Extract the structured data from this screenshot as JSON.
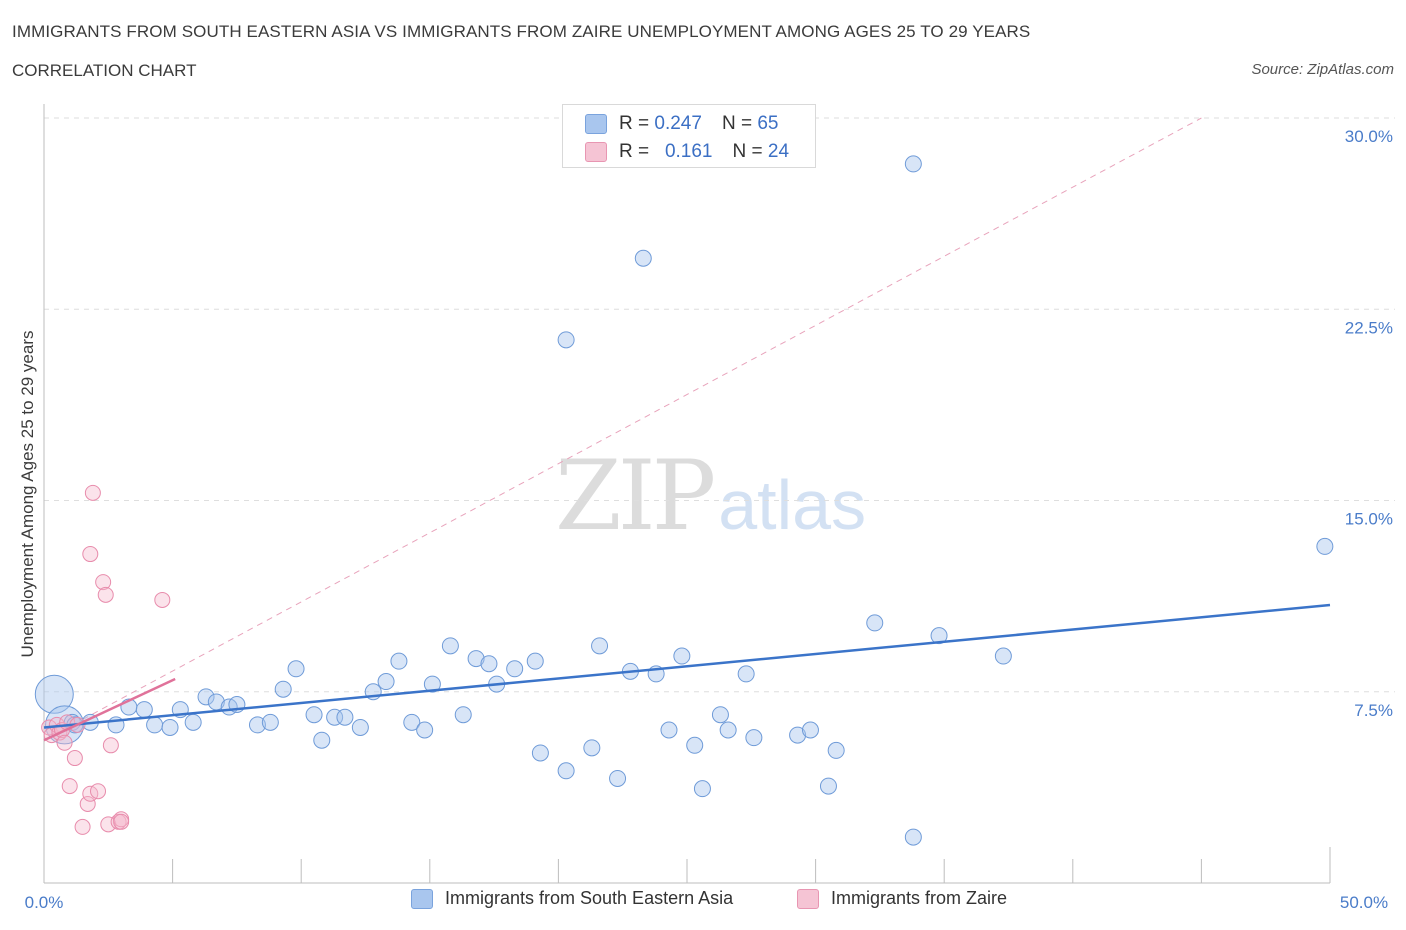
{
  "header": {
    "title": "IMMIGRANTS FROM SOUTH EASTERN ASIA VS IMMIGRANTS FROM ZAIRE UNEMPLOYMENT AMONG AGES 25 TO 29 YEARS",
    "subtitle": "CORRELATION CHART",
    "source": "Source: ZipAtlas.com"
  },
  "watermark": {
    "zip": "ZIP",
    "atlas": "atlas"
  },
  "legend_top": {
    "r_label": "R =",
    "n_label": "N =",
    "series1": {
      "r": "0.247",
      "n": "65"
    },
    "series2": {
      "r": "0.161",
      "n": "24"
    }
  },
  "legend_bottom": {
    "series1": "Immigrants from South Eastern Asia",
    "series2": "Immigrants from Zaire"
  },
  "chart_data": {
    "type": "scatter",
    "title": "IMMIGRANTS FROM SOUTH EASTERN ASIA VS IMMIGRANTS FROM ZAIRE UNEMPLOYMENT AMONG AGES 25 TO 29 YEARS",
    "xlabel": "",
    "ylabel": "Unemployment Among Ages 25 to 29 years",
    "xlim": [
      0,
      50
    ],
    "ylim": [
      0,
      30
    ],
    "x_tick_labels": [
      "0.0%",
      "50.0%"
    ],
    "y_ticks": [
      7.5,
      15.0,
      22.5,
      30.0
    ],
    "y_tick_labels": [
      "7.5%",
      "15.0%",
      "22.5%",
      "30.0%"
    ],
    "grid": true,
    "colors": {
      "series1": "#3b74c9",
      "series1_fill": "#a9c6ee",
      "series2": "#e0729a",
      "series2_fill": "#f5b8cc"
    },
    "series": [
      {
        "name": "Immigrants from South Eastern Asia",
        "R": 0.247,
        "N": 65,
        "trend": {
          "x": [
            0,
            50
          ],
          "y": [
            6.1,
            10.9
          ]
        },
        "points": [
          [
            0.4,
            7.4
          ],
          [
            0.8,
            6.2
          ],
          [
            1.1,
            6.3
          ],
          [
            1.2,
            6.2
          ],
          [
            1.8,
            6.3
          ],
          [
            2.8,
            6.2
          ],
          [
            3.3,
            6.9
          ],
          [
            3.9,
            6.8
          ],
          [
            4.3,
            6.2
          ],
          [
            4.9,
            6.1
          ],
          [
            5.3,
            6.8
          ],
          [
            5.8,
            6.3
          ],
          [
            6.3,
            7.3
          ],
          [
            6.7,
            7.1
          ],
          [
            7.2,
            6.9
          ],
          [
            7.5,
            7.0
          ],
          [
            8.3,
            6.2
          ],
          [
            8.8,
            6.3
          ],
          [
            9.3,
            7.6
          ],
          [
            9.8,
            8.4
          ],
          [
            10.5,
            6.6
          ],
          [
            10.8,
            5.6
          ],
          [
            11.3,
            6.5
          ],
          [
            11.7,
            6.5
          ],
          [
            12.3,
            6.1
          ],
          [
            12.8,
            7.5
          ],
          [
            13.3,
            7.9
          ],
          [
            13.8,
            8.7
          ],
          [
            14.3,
            6.3
          ],
          [
            14.8,
            6.0
          ],
          [
            15.1,
            7.8
          ],
          [
            15.8,
            9.3
          ],
          [
            16.3,
            6.6
          ],
          [
            16.8,
            8.8
          ],
          [
            17.3,
            8.6
          ],
          [
            17.6,
            7.8
          ],
          [
            18.3,
            8.4
          ],
          [
            19.1,
            8.7
          ],
          [
            19.3,
            5.1
          ],
          [
            20.3,
            4.4
          ],
          [
            20.3,
            21.3
          ],
          [
            21.3,
            5.3
          ],
          [
            21.6,
            9.3
          ],
          [
            22.3,
            4.1
          ],
          [
            22.8,
            8.3
          ],
          [
            23.3,
            24.5
          ],
          [
            23.8,
            8.2
          ],
          [
            24.3,
            6.0
          ],
          [
            24.8,
            8.9
          ],
          [
            25.3,
            5.4
          ],
          [
            25.6,
            3.7
          ],
          [
            26.3,
            6.6
          ],
          [
            26.6,
            6.0
          ],
          [
            27.3,
            8.2
          ],
          [
            27.6,
            5.7
          ],
          [
            29.3,
            5.8
          ],
          [
            29.8,
            6.0
          ],
          [
            30.5,
            3.8
          ],
          [
            30.8,
            5.2
          ],
          [
            32.3,
            10.2
          ],
          [
            33.8,
            28.2
          ],
          [
            33.8,
            1.8
          ],
          [
            34.8,
            9.7
          ],
          [
            37.3,
            8.9
          ],
          [
            49.8,
            13.2
          ]
        ],
        "sizes": [
          16,
          12,
          10,
          10,
          10,
          10,
          10,
          10,
          10,
          10,
          10,
          10,
          10,
          10,
          10,
          10,
          10,
          10,
          10,
          10,
          10,
          10,
          10,
          10,
          10,
          10,
          10,
          10,
          10,
          10,
          10,
          10,
          10,
          10,
          10,
          10,
          10,
          10,
          10,
          10,
          10,
          10,
          10,
          10,
          10,
          10,
          10,
          10,
          10,
          10,
          10,
          10,
          10,
          10,
          10,
          10,
          10,
          10,
          10,
          10,
          10,
          10,
          10,
          10,
          10
        ]
      },
      {
        "name": "Immigrants from Zaire",
        "R": 0.161,
        "N": 24,
        "trend": {
          "x": [
            0,
            5.1
          ],
          "y": [
            5.6,
            8.0
          ]
        },
        "trend_extended": {
          "x": [
            0,
            45.0
          ],
          "y": [
            5.6,
            30.0
          ]
        },
        "points": [
          [
            0.2,
            6.1
          ],
          [
            0.3,
            5.8
          ],
          [
            0.5,
            6.2
          ],
          [
            0.6,
            5.9
          ],
          [
            0.7,
            6.0
          ],
          [
            0.8,
            5.5
          ],
          [
            0.9,
            6.3
          ],
          [
            1.0,
            3.8
          ],
          [
            1.2,
            4.9
          ],
          [
            1.3,
            6.2
          ],
          [
            1.5,
            2.2
          ],
          [
            1.7,
            3.1
          ],
          [
            1.8,
            12.9
          ],
          [
            1.8,
            3.5
          ],
          [
            1.9,
            15.3
          ],
          [
            2.1,
            3.6
          ],
          [
            2.3,
            11.8
          ],
          [
            2.4,
            11.3
          ],
          [
            2.5,
            2.3
          ],
          [
            2.6,
            5.4
          ],
          [
            2.9,
            2.4
          ],
          [
            3.0,
            2.5
          ],
          [
            3.0,
            2.4
          ],
          [
            4.6,
            11.1
          ]
        ],
        "sizes": [
          10,
          10,
          10,
          10,
          10,
          10,
          10,
          9,
          9,
          9,
          9,
          9,
          9,
          9,
          9,
          9,
          9,
          9,
          9,
          9,
          9,
          9,
          9,
          9
        ]
      }
    ]
  }
}
